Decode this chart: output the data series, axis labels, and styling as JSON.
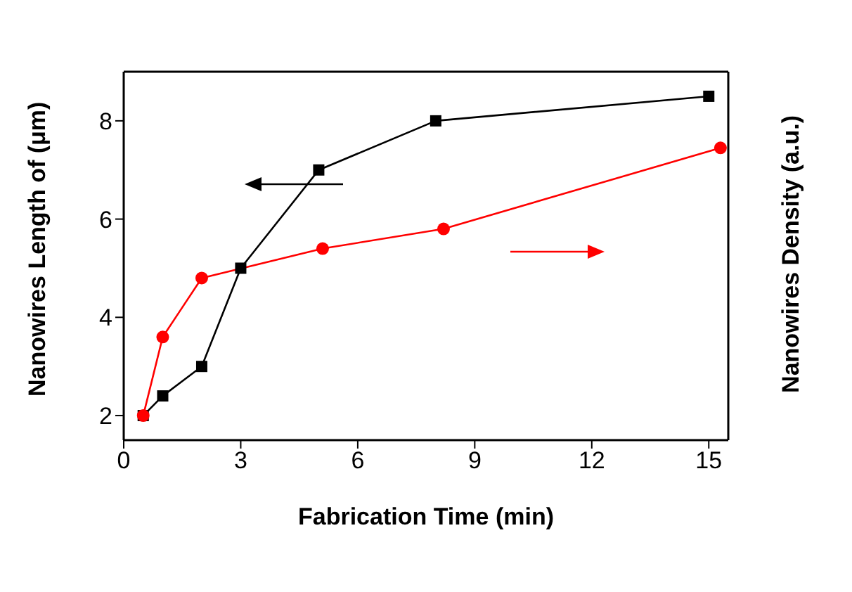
{
  "chart_data": {
    "type": "line",
    "xlabel": "Fabrication Time (min)",
    "ylabel": "Nanowires Length of (μm)",
    "y2label": "Nanowires Density (a.u.)",
    "xlim": [
      0,
      15.5
    ],
    "xticks": [
      0,
      3,
      6,
      9,
      12,
      15
    ],
    "ylim": [
      1.5,
      9
    ],
    "yticks": [
      2,
      4,
      6,
      8
    ],
    "grid": false,
    "series": [
      {
        "color": "#000000",
        "marker": "square",
        "x": [
          0.5,
          1,
          2,
          3,
          5,
          8,
          15
        ],
        "values": [
          2,
          2.4,
          3,
          5,
          7,
          8,
          8.5
        ]
      },
      {
        "color": "#ff0000",
        "marker": "circle",
        "x": [
          0.5,
          1,
          2,
          5.1,
          8.2,
          15.3
        ],
        "values": [
          2,
          3.6,
          4.8,
          5.4,
          5.8,
          7.45
        ]
      }
    ]
  }
}
